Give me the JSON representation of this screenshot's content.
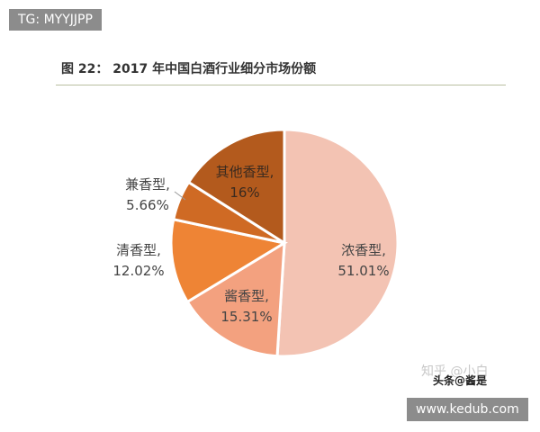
{
  "tags": {
    "top": "TG: MYYJJPP",
    "bottom": "www.kedub.com"
  },
  "watermark": {
    "primary": "知乎 @小白",
    "brand": "头条@酱是"
  },
  "chart_data": {
    "type": "pie",
    "title": "图 22： 2017 年中国白酒行业细分市场份额",
    "slices": [
      {
        "label": "浓香型",
        "value_text": "51.01%",
        "value": 51.01,
        "color": "#f3c3b3"
      },
      {
        "label": "酱香型",
        "value_text": "15.31%",
        "value": 15.31,
        "color": "#f3a17f"
      },
      {
        "label": "清香型",
        "value_text": "12.02%",
        "value": 12.02,
        "color": "#ee8435"
      },
      {
        "label": "兼香型",
        "value_text": "5.66%",
        "value": 5.66,
        "color": "#cf6a24"
      },
      {
        "label": "其他香型",
        "value_text": "16%",
        "value": 16.0,
        "color": "#b35a1d"
      }
    ]
  }
}
